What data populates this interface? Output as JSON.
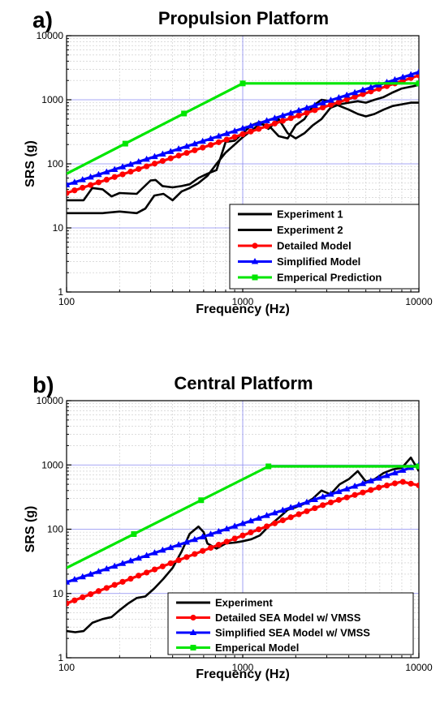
{
  "chart_data": [
    {
      "type": "line",
      "panel_label": "a)",
      "title": "Propulsion Platform",
      "xlabel": "Frequency (Hz)",
      "ylabel": "SRS (g)",
      "xscale": "log",
      "yscale": "log",
      "xlim": [
        100,
        10000
      ],
      "ylim": [
        1,
        10000
      ],
      "x_ticks": [
        "100",
        "1000",
        "10000"
      ],
      "y_ticks": [
        "1",
        "10",
        "100",
        "1000",
        "10000"
      ],
      "grid": true,
      "legend_position": "lower-right",
      "series": [
        {
          "name": "Experiment 1",
          "color": "#000000",
          "marker": "none",
          "x": [
            100,
            125,
            160,
            200,
            250,
            280,
            315,
            355,
            400,
            450,
            500,
            560,
            630,
            710,
            800,
            900,
            1000,
            1120,
            1250,
            1400,
            1600,
            1800,
            2000,
            2240,
            2500,
            2800,
            3150,
            3550,
            4000,
            4500,
            5000,
            5600,
            6300,
            7100,
            8000,
            9000,
            10000
          ],
          "y": [
            17,
            17,
            17,
            18,
            17,
            20,
            32,
            34,
            27,
            37,
            42,
            50,
            65,
            100,
            150,
            200,
            260,
            330,
            420,
            400,
            270,
            250,
            400,
            500,
            800,
            1000,
            950,
            800,
            700,
            600,
            550,
            600,
            700,
            800,
            850,
            900,
            900
          ]
        },
        {
          "name": "Experiment 2",
          "color": "#000000",
          "marker": "none",
          "x": [
            100,
            125,
            140,
            160,
            180,
            200,
            250,
            300,
            320,
            350,
            400,
            450,
            500,
            560,
            630,
            710,
            800,
            900,
            1000,
            1120,
            1250,
            1400,
            1600,
            1800,
            2000,
            2240,
            2500,
            2800,
            3150,
            3550,
            4000,
            4500,
            5000,
            5600,
            6300,
            7100,
            8000,
            9000,
            10000
          ],
          "y": [
            27,
            27,
            42,
            40,
            31,
            35,
            34,
            55,
            56,
            45,
            43,
            45,
            48,
            60,
            70,
            80,
            220,
            230,
            300,
            400,
            450,
            350,
            500,
            300,
            250,
            300,
            400,
            500,
            750,
            850,
            900,
            950,
            900,
            1000,
            1100,
            1300,
            1500,
            1600,
            1700
          ]
        },
        {
          "name": "Detailed Model",
          "color": "#ff0000",
          "marker": "circle",
          "x": [
            100,
            10000
          ],
          "y": [
            35,
            2400
          ]
        },
        {
          "name": "Simplified Model",
          "color": "#0000ff",
          "marker": "triangle",
          "x": [
            100,
            10000
          ],
          "y": [
            47,
            2700
          ]
        },
        {
          "name": "Emperical Prediction",
          "color": "#00e600",
          "marker": "square",
          "x": [
            100,
            1000,
            10000
          ],
          "y": [
            70,
            1800,
            1800
          ]
        }
      ]
    },
    {
      "type": "line",
      "panel_label": "b)",
      "title": "Central Platform",
      "xlabel": "Frequency (Hz)",
      "ylabel": "SRS (g)",
      "xscale": "log",
      "yscale": "log",
      "xlim": [
        100,
        10000
      ],
      "ylim": [
        1,
        10000
      ],
      "x_ticks": [
        "100",
        "1000",
        "10000"
      ],
      "y_ticks": [
        "1",
        "10",
        "100",
        "1000",
        "10000"
      ],
      "grid": true,
      "legend_position": "lower-right",
      "series": [
        {
          "name": "Experiment",
          "color": "#000000",
          "marker": "none",
          "x": [
            100,
            112,
            125,
            140,
            160,
            180,
            200,
            224,
            250,
            280,
            315,
            355,
            400,
            450,
            500,
            560,
            600,
            630,
            710,
            800,
            900,
            1000,
            1120,
            1250,
            1400,
            1600,
            1800,
            2000,
            2240,
            2500,
            2800,
            3150,
            3550,
            4000,
            4500,
            5000,
            5600,
            6300,
            7100,
            8000,
            9000,
            10000
          ],
          "y": [
            2.6,
            2.5,
            2.6,
            3.5,
            4,
            4.3,
            5.5,
            7,
            8.5,
            9,
            12,
            17,
            25,
            45,
            85,
            110,
            90,
            60,
            50,
            60,
            62,
            65,
            70,
            80,
            110,
            150,
            200,
            220,
            250,
            300,
            400,
            350,
            500,
            600,
            800,
            550,
            600,
            750,
            850,
            900,
            1300,
            800
          ]
        },
        {
          "name": "Detailed SEA Model w/ VMSS",
          "color": "#ff0000",
          "marker": "circle",
          "x": [
            100,
            1000,
            3000,
            6000,
            8000,
            10000
          ],
          "y": [
            7,
            80,
            250,
            450,
            550,
            480
          ]
        },
        {
          "name": "Simplified SEA Model w/ VMSS",
          "color": "#0000ff",
          "marker": "triangle",
          "x": [
            100,
            10000
          ],
          "y": [
            15,
            1000
          ]
        },
        {
          "name": "Emperical Model",
          "color": "#00e600",
          "marker": "square",
          "x": [
            100,
            1400,
            10000
          ],
          "y": [
            25,
            950,
            950
          ]
        }
      ]
    }
  ]
}
